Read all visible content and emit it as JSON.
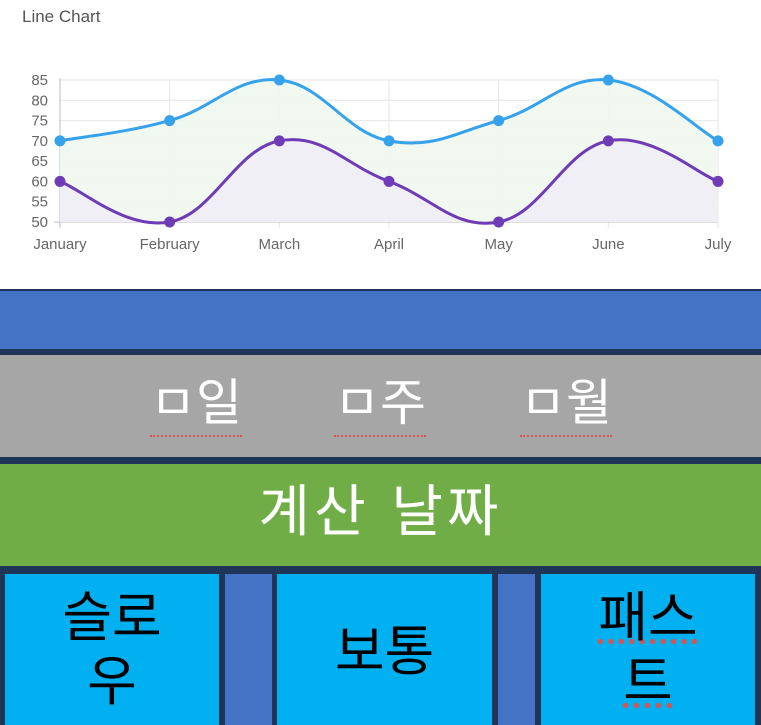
{
  "chart": {
    "title": "Line Chart"
  },
  "chart_data": {
    "type": "line",
    "title": "Line Chart",
    "categories": [
      "January",
      "February",
      "March",
      "April",
      "May",
      "June",
      "July"
    ],
    "series": [
      {
        "values": [
          70,
          75,
          85,
          70,
          75,
          85,
          70
        ],
        "color": "#36a2eb",
        "fill": "#eef7ee"
      },
      {
        "values": [
          60,
          50,
          70,
          60,
          50,
          70,
          60
        ],
        "color": "#6f3cb5",
        "fill": "#efedf5"
      }
    ],
    "y_ticks": [
      50,
      55,
      60,
      65,
      70,
      75,
      80,
      85
    ],
    "ylim": [
      50,
      85
    ],
    "grid": true,
    "curve": "smooth"
  },
  "period_options": [
    {
      "label": "ㅁ일"
    },
    {
      "label": "ㅁ주"
    },
    {
      "label": "ㅁ월"
    }
  ],
  "calculate_label": "계산 날짜",
  "speed_options": [
    {
      "label": "슬로우"
    },
    {
      "label": "보통"
    },
    {
      "label": "패스트"
    }
  ],
  "colors": {
    "background": "#1f3557",
    "blue_bar": "#4472c4",
    "grey_bar": "#a6a6a6",
    "green_bar": "#70ad47",
    "speed_button": "#00b0f0"
  }
}
